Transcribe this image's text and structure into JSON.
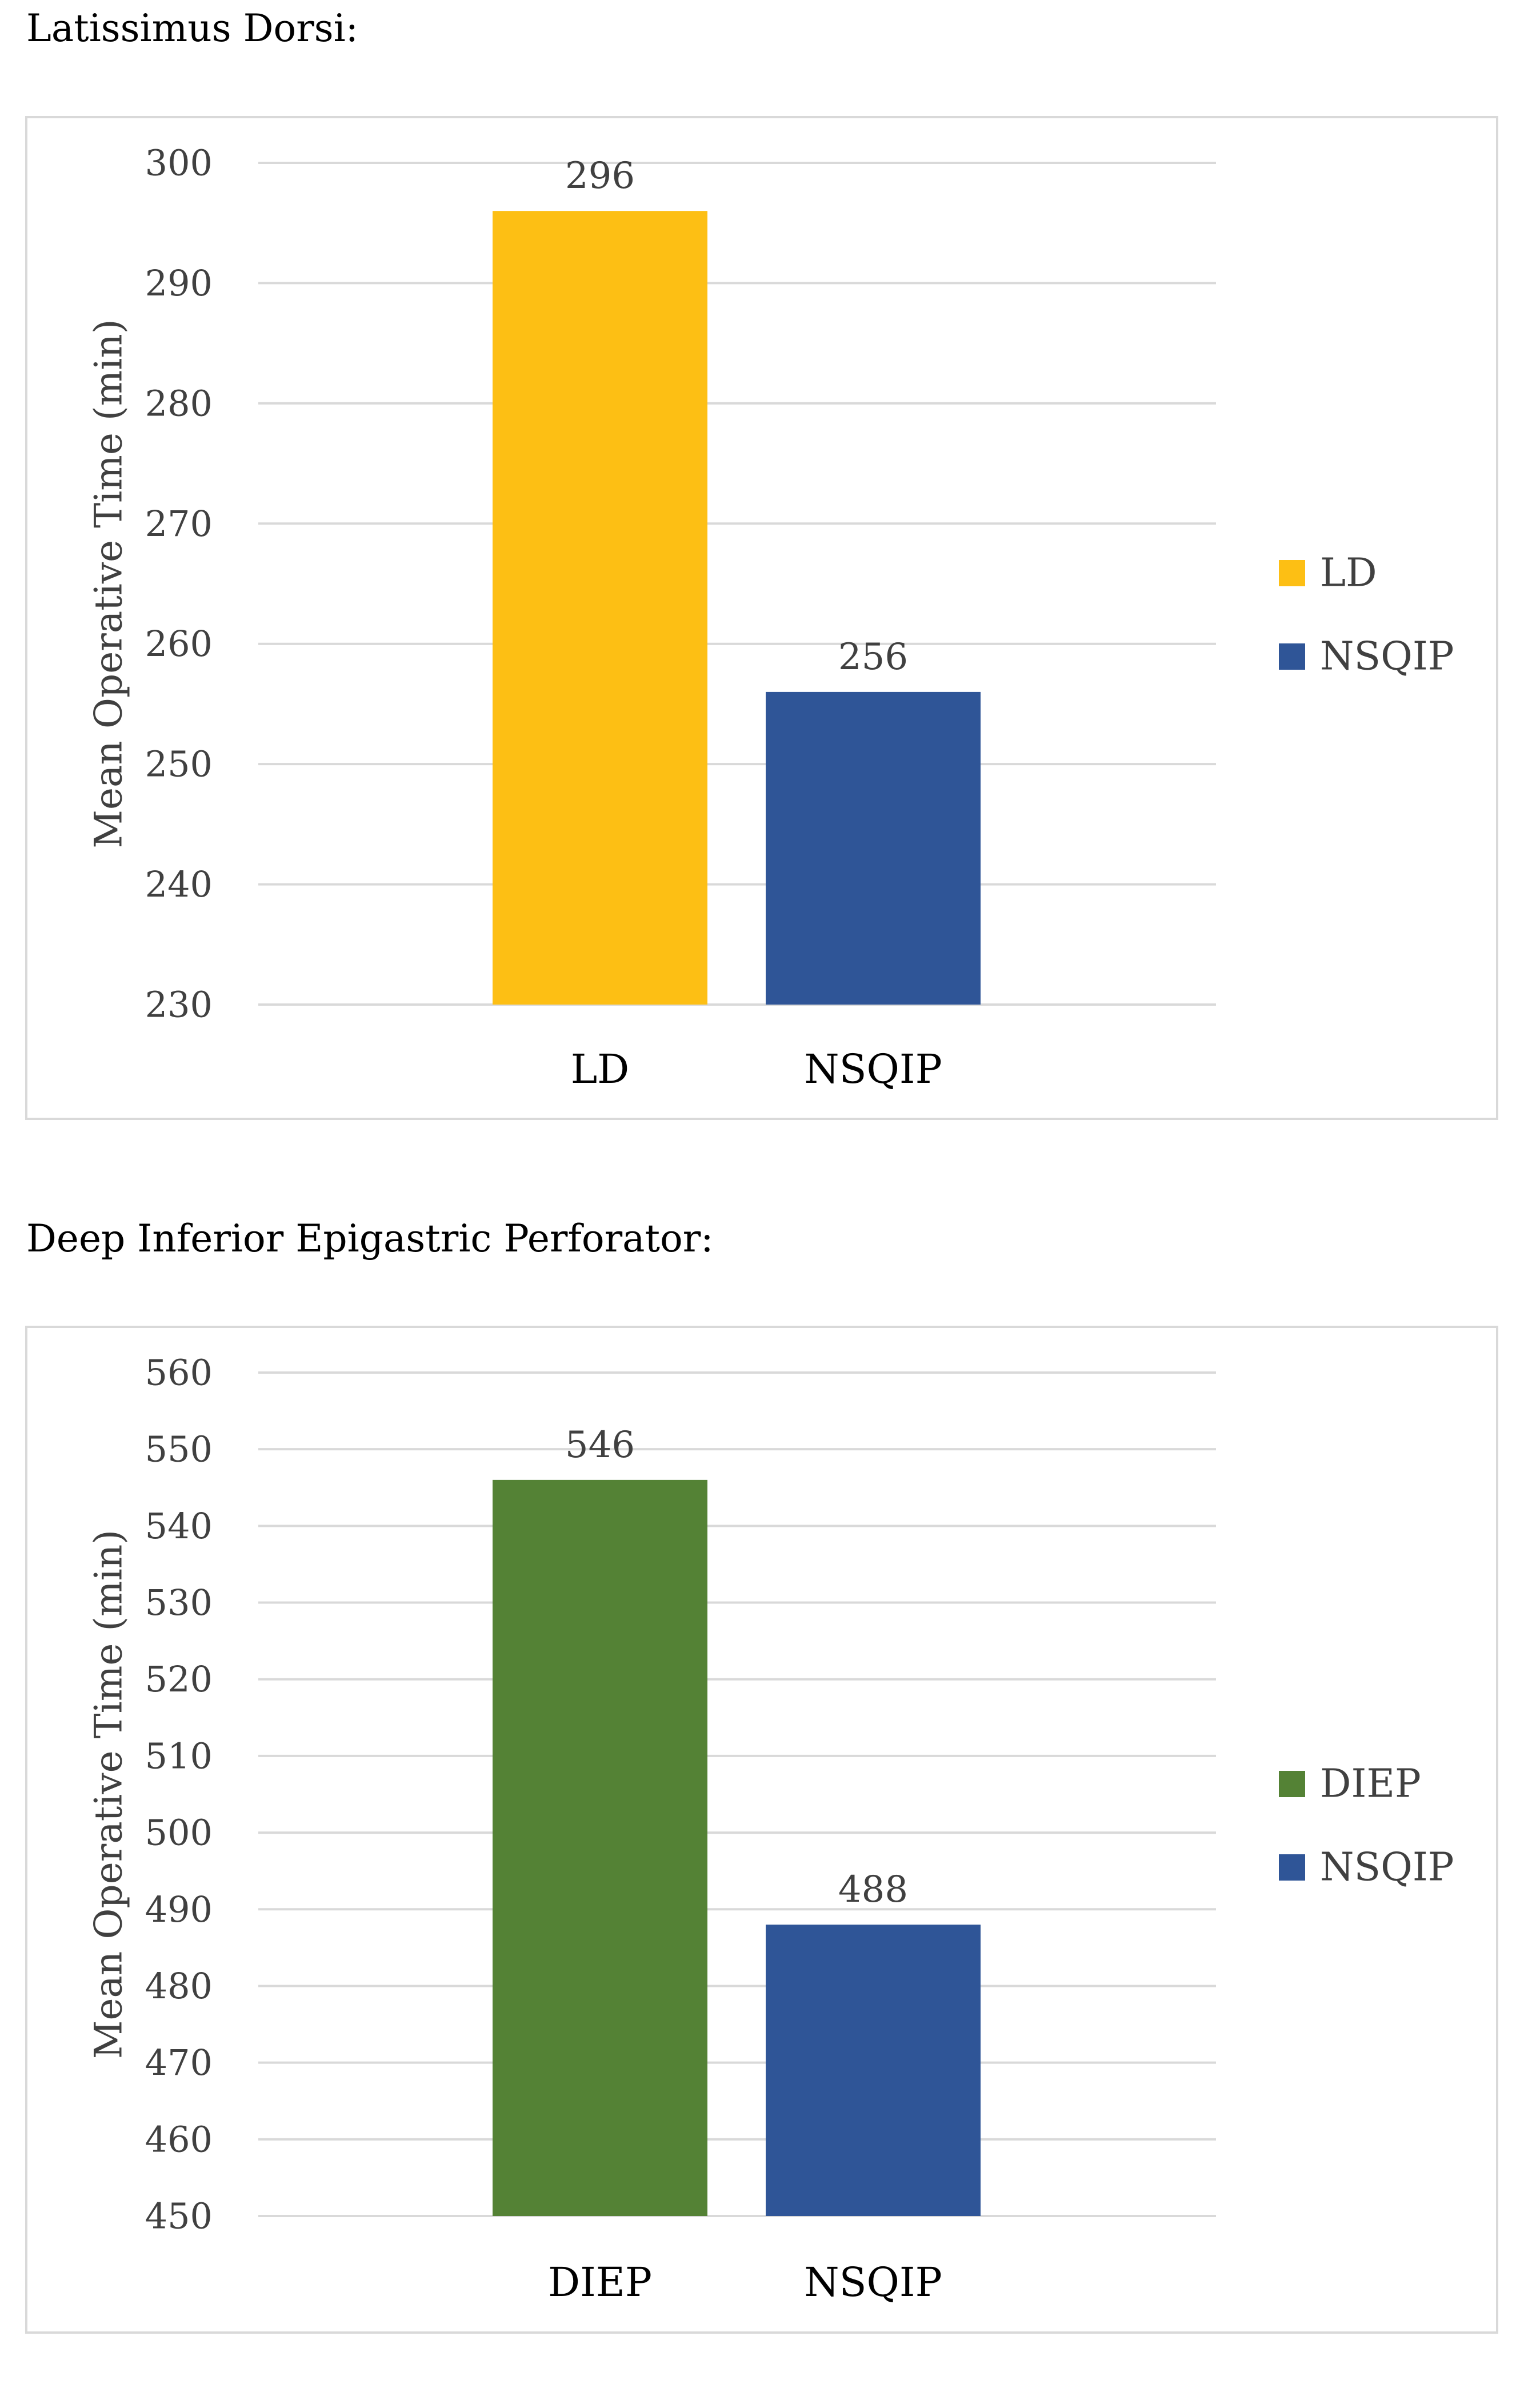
{
  "chart_data": [
    {
      "type": "bar",
      "title": "Latissimus Dorsi:",
      "categories": [
        "LD",
        "NSQIP"
      ],
      "values": [
        296,
        256
      ],
      "ylabel": "Mean Operative Time (min)",
      "xlabel": "",
      "ylim": [
        230,
        300
      ],
      "y_ticks": [
        230,
        240,
        250,
        260,
        270,
        280,
        290,
        300
      ],
      "colors": [
        "#FDBF14",
        "#2F5597"
      ],
      "legend": [
        {
          "label": "LD",
          "color": "#FDBF14"
        },
        {
          "label": "NSQIP",
          "color": "#2F5597"
        }
      ],
      "legend_position": "right",
      "grid": true
    },
    {
      "type": "bar",
      "title": "Deep Inferior Epigastric Perforator:",
      "categories": [
        "DIEP",
        "NSQIP"
      ],
      "values": [
        546,
        488
      ],
      "ylabel": "Mean Operative Time (min)",
      "xlabel": "",
      "ylim": [
        450,
        560
      ],
      "y_ticks": [
        450,
        460,
        470,
        480,
        490,
        500,
        510,
        520,
        530,
        540,
        550,
        560
      ],
      "colors": [
        "#548235",
        "#2F5597"
      ],
      "legend": [
        {
          "label": "DIEP",
          "color": "#548235"
        },
        {
          "label": "NSQIP",
          "color": "#2F5597"
        }
      ],
      "legend_position": "right",
      "grid": true
    }
  ]
}
